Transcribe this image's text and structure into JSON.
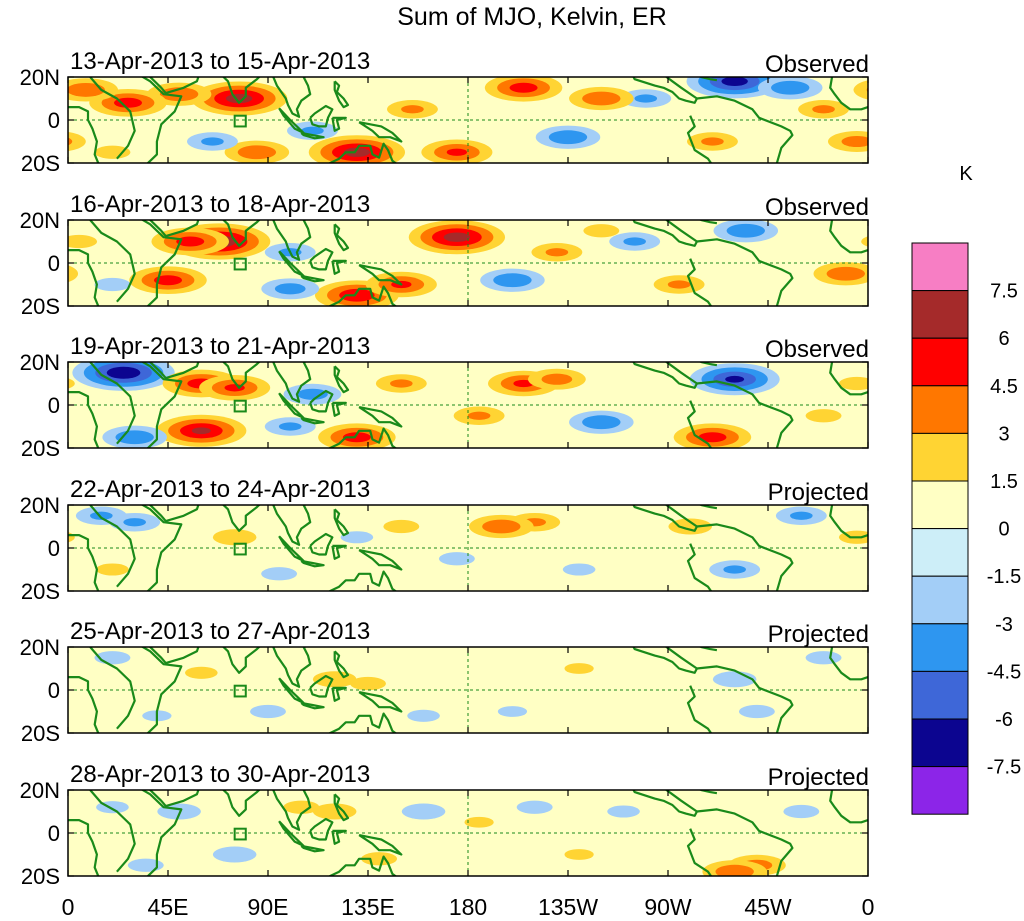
{
  "chart_data": {
    "type": "heatmap",
    "title": "Sum of MJO, Kelvin, ER",
    "unit": "K",
    "colorbar": {
      "labels": [
        "7.5",
        "6",
        "4.5",
        "3",
        "1.5",
        "0",
        "-1.5",
        "-3",
        "-4.5",
        "-6",
        "-7.5"
      ],
      "levels": [
        7.5,
        6,
        4.5,
        3,
        1.5,
        0,
        -1.5,
        -3,
        -4.5,
        -6,
        -7.5
      ],
      "colors": [
        "#f77ec4",
        "#a52a2a",
        "#ff0000",
        "#ff7700",
        "#ffd433",
        "#ffffc4",
        "#cdeef8",
        "#a3cef7",
        "#2e96f0",
        "#3e67d8",
        "#0c0590",
        "#8c25e8"
      ]
    },
    "lat_labels": [
      "20N",
      "0",
      "20S"
    ],
    "lon_labels": [
      "0",
      "45E",
      "90E",
      "135E",
      "180",
      "135W",
      "90W",
      "45W",
      "0"
    ],
    "panels": [
      {
        "dates": "13-Apr-2013 to 15-Apr-2013",
        "status": "Observed",
        "blobs": [
          {
            "lon": 77,
            "lat": 10,
            "v": 6.5
          },
          {
            "lon": 50,
            "lat": 12,
            "v": 4
          },
          {
            "lon": 27,
            "lat": 8,
            "v": 5
          },
          {
            "lon": 8,
            "lat": 14,
            "v": 4
          },
          {
            "lon": 130,
            "lat": -15,
            "v": 6.5
          },
          {
            "lon": 205,
            "lat": 15,
            "v": 5
          },
          {
            "lon": 300,
            "lat": 18,
            "v": -6.5
          },
          {
            "lon": 325,
            "lat": 15,
            "v": -4
          },
          {
            "lon": 260,
            "lat": 10,
            "v": -3
          },
          {
            "lon": 240,
            "lat": 10,
            "v": 4
          },
          {
            "lon": 225,
            "lat": -8,
            "v": -4
          },
          {
            "lon": 175,
            "lat": -15,
            "v": 4.5
          },
          {
            "lon": 85,
            "lat": -15,
            "v": 4
          },
          {
            "lon": 65,
            "lat": -10,
            "v": -3
          },
          {
            "lon": 340,
            "lat": 5,
            "v": 3
          },
          {
            "lon": 355,
            "lat": -10,
            "v": 3.5
          },
          {
            "lon": 110,
            "lat": -5,
            "v": -3
          },
          {
            "lon": 155,
            "lat": 5,
            "v": 3
          },
          {
            "lon": 290,
            "lat": -10,
            "v": 3
          },
          {
            "lon": 20,
            "lat": -15,
            "v": 2
          }
        ]
      },
      {
        "dates": "16-Apr-2013 to 18-Apr-2013",
        "status": "Observed",
        "blobs": [
          {
            "lon": 68,
            "lat": 10,
            "v": 7
          },
          {
            "lon": 55,
            "lat": 10,
            "v": 5
          },
          {
            "lon": 175,
            "lat": 12,
            "v": 6.5
          },
          {
            "lon": 45,
            "lat": -8,
            "v": 5
          },
          {
            "lon": 130,
            "lat": -15,
            "v": 5.5
          },
          {
            "lon": 200,
            "lat": -8,
            "v": -4
          },
          {
            "lon": 150,
            "lat": -10,
            "v": 4.5
          },
          {
            "lon": 350,
            "lat": -5,
            "v": 4
          },
          {
            "lon": 305,
            "lat": 15,
            "v": -4
          },
          {
            "lon": 255,
            "lat": 10,
            "v": -3
          },
          {
            "lon": 220,
            "lat": 5,
            "v": 3
          },
          {
            "lon": 100,
            "lat": 5,
            "v": -3
          },
          {
            "lon": 100,
            "lat": -12,
            "v": -3.5
          },
          {
            "lon": 275,
            "lat": -10,
            "v": 3
          },
          {
            "lon": 20,
            "lat": -10,
            "v": -2
          },
          {
            "lon": 5,
            "lat": 10,
            "v": 2
          },
          {
            "lon": 240,
            "lat": 15,
            "v": 2
          }
        ]
      },
      {
        "dates": "19-Apr-2013 to 21-Apr-2013",
        "status": "Observed",
        "blobs": [
          {
            "lon": 25,
            "lat": 15,
            "v": -7
          },
          {
            "lon": 60,
            "lat": 10,
            "v": 5
          },
          {
            "lon": 75,
            "lat": 8,
            "v": 4.5
          },
          {
            "lon": 60,
            "lat": -12,
            "v": 6
          },
          {
            "lon": 205,
            "lat": 10,
            "v": 4.5
          },
          {
            "lon": 220,
            "lat": 12,
            "v": 3.5
          },
          {
            "lon": 300,
            "lat": 12,
            "v": -6
          },
          {
            "lon": 290,
            "lat": -15,
            "v": 5
          },
          {
            "lon": 240,
            "lat": -8,
            "v": -4
          },
          {
            "lon": 185,
            "lat": -5,
            "v": 3
          },
          {
            "lon": 130,
            "lat": -15,
            "v": 5
          },
          {
            "lon": 110,
            "lat": 5,
            "v": -3.5
          },
          {
            "lon": 150,
            "lat": 10,
            "v": 3
          },
          {
            "lon": 30,
            "lat": -15,
            "v": -4
          },
          {
            "lon": 355,
            "lat": 10,
            "v": 2
          },
          {
            "lon": 340,
            "lat": -5,
            "v": 2
          },
          {
            "lon": 100,
            "lat": -10,
            "v": -3
          }
        ]
      },
      {
        "dates": "22-Apr-2013 to 24-Apr-2013",
        "status": "Projected",
        "blobs": [
          {
            "lon": 30,
            "lat": 12,
            "v": -3
          },
          {
            "lon": 75,
            "lat": 5,
            "v": 2.5
          },
          {
            "lon": 210,
            "lat": 12,
            "v": 3
          },
          {
            "lon": 195,
            "lat": 10,
            "v": 4
          },
          {
            "lon": 280,
            "lat": 10,
            "v": 2.5
          },
          {
            "lon": 300,
            "lat": -10,
            "v": -3
          },
          {
            "lon": 330,
            "lat": 15,
            "v": -3
          },
          {
            "lon": 130,
            "lat": 5,
            "v": -1.8
          },
          {
            "lon": 150,
            "lat": 10,
            "v": 2
          },
          {
            "lon": 175,
            "lat": -5,
            "v": -2
          },
          {
            "lon": 230,
            "lat": -10,
            "v": -1.8
          },
          {
            "lon": 95,
            "lat": -12,
            "v": -2
          },
          {
            "lon": 15,
            "lat": 15,
            "v": -3
          },
          {
            "lon": 20,
            "lat": -10,
            "v": 1.8
          },
          {
            "lon": 355,
            "lat": 5,
            "v": 2
          }
        ]
      },
      {
        "dates": "25-Apr-2013 to 27-Apr-2013",
        "status": "Projected",
        "blobs": [
          {
            "lon": 120,
            "lat": 5,
            "v": 2.5
          },
          {
            "lon": 135,
            "lat": 3,
            "v": 2
          },
          {
            "lon": 60,
            "lat": 8,
            "v": 1.8
          },
          {
            "lon": 300,
            "lat": 5,
            "v": -2.5
          },
          {
            "lon": 310,
            "lat": -10,
            "v": -2
          },
          {
            "lon": 90,
            "lat": -10,
            "v": -2
          },
          {
            "lon": 160,
            "lat": -12,
            "v": -1.8
          },
          {
            "lon": 230,
            "lat": 10,
            "v": 1.6
          },
          {
            "lon": 20,
            "lat": 15,
            "v": -2
          },
          {
            "lon": 340,
            "lat": 15,
            "v": -2
          },
          {
            "lon": 40,
            "lat": -12,
            "v": -1.6
          },
          {
            "lon": 200,
            "lat": -10,
            "v": -1.6
          }
        ]
      },
      {
        "dates": "28-Apr-2013 to 30-Apr-2013",
        "status": "Projected",
        "blobs": [
          {
            "lon": 120,
            "lat": 10,
            "v": 2.5
          },
          {
            "lon": 105,
            "lat": 12,
            "v": 2
          },
          {
            "lon": 310,
            "lat": -15,
            "v": 3.5
          },
          {
            "lon": 300,
            "lat": -18,
            "v": 4
          },
          {
            "lon": 50,
            "lat": 10,
            "v": -2.5
          },
          {
            "lon": 75,
            "lat": -10,
            "v": -2.5
          },
          {
            "lon": 160,
            "lat": 10,
            "v": -2.5
          },
          {
            "lon": 210,
            "lat": 12,
            "v": -2
          },
          {
            "lon": 250,
            "lat": 10,
            "v": -1.8
          },
          {
            "lon": 330,
            "lat": 10,
            "v": -2
          },
          {
            "lon": 140,
            "lat": -12,
            "v": 2
          },
          {
            "lon": 230,
            "lat": -10,
            "v": 1.6
          },
          {
            "lon": 35,
            "lat": -15,
            "v": -2
          },
          {
            "lon": 20,
            "lat": 12,
            "v": -1.8
          },
          {
            "lon": 185,
            "lat": 5,
            "v": 1.6
          }
        ]
      }
    ]
  }
}
